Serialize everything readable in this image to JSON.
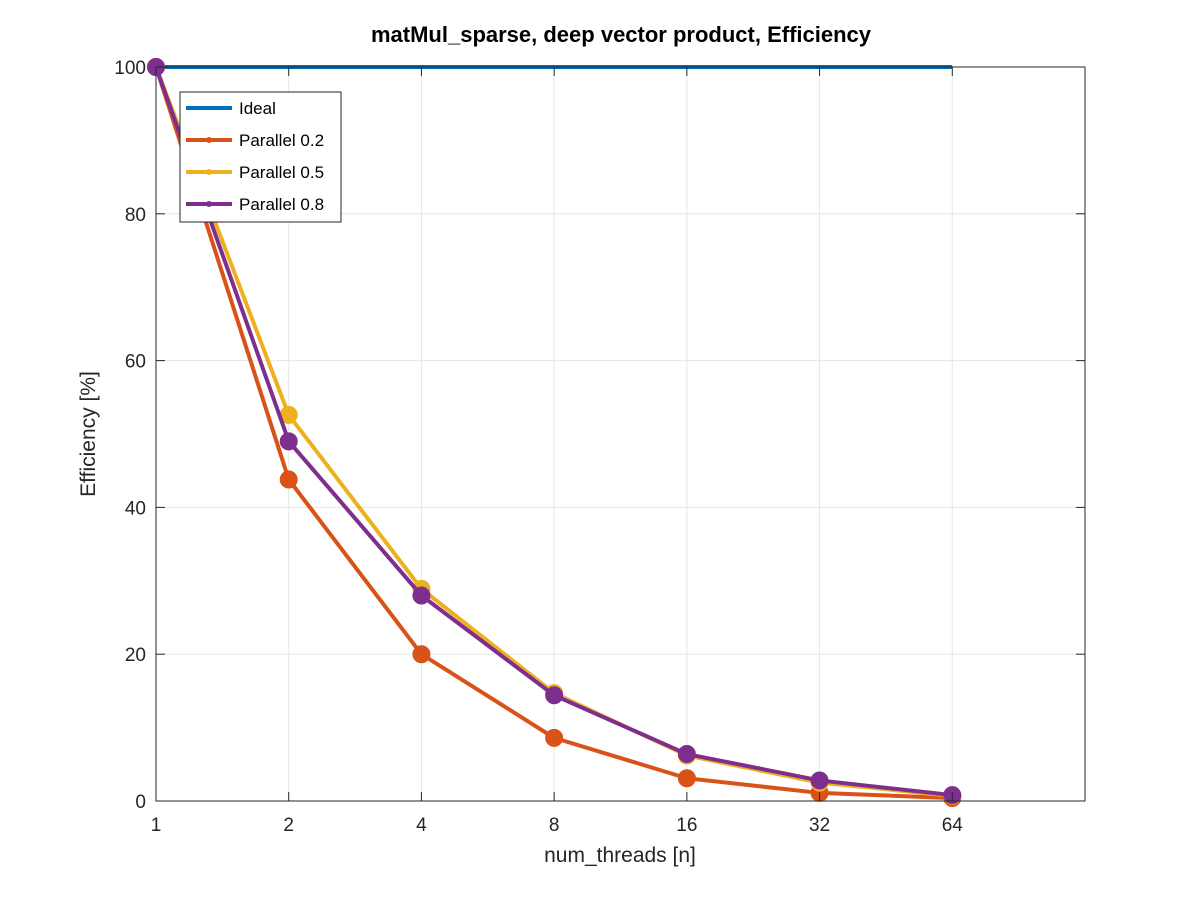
{
  "chart_data": {
    "type": "line",
    "title": "matMul_sparse, deep vector product, Efficiency",
    "xlabel": "num_threads [n]",
    "ylabel": "Efficiency [%]",
    "x_scale": "log2",
    "xlim": [
      1,
      128
    ],
    "ylim": [
      0,
      100
    ],
    "x": [
      1,
      2,
      4,
      8,
      16,
      32,
      64
    ],
    "x_tick_labels": [
      "1",
      "2",
      "4",
      "8",
      "16",
      "32",
      "64"
    ],
    "y_ticks": [
      0,
      20,
      40,
      60,
      80,
      100
    ],
    "y_tick_labels": [
      "0",
      "20",
      "40",
      "60",
      "80",
      "100"
    ],
    "grid": true,
    "legend_position": "top-left",
    "series": [
      {
        "name": "Ideal",
        "color": "#0072BD",
        "markers": false,
        "values": [
          100,
          100,
          100,
          100,
          100,
          100,
          100
        ]
      },
      {
        "name": "Parallel 0.2",
        "color": "#D95319",
        "markers": true,
        "values": [
          100,
          43.8,
          20.0,
          8.6,
          3.1,
          1.1,
          0.4
        ]
      },
      {
        "name": "Parallel 0.5",
        "color": "#EDB120",
        "markers": true,
        "values": [
          100,
          52.6,
          28.9,
          14.7,
          6.2,
          2.5,
          0.7
        ]
      },
      {
        "name": "Parallel 0.8",
        "color": "#7E2F8E",
        "markers": true,
        "values": [
          100,
          49.0,
          28.0,
          14.4,
          6.4,
          2.8,
          0.8
        ]
      }
    ]
  }
}
